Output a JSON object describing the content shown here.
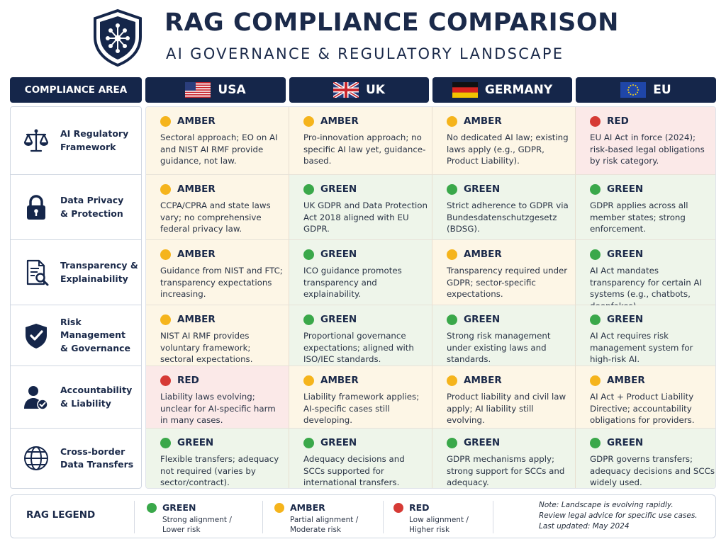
{
  "header": {
    "title": "RAG COMPLIANCE COMPARISON",
    "subtitle": "AI GOVERNANCE & REGULATORY LANDSCAPE"
  },
  "columns": {
    "area": "COMPLIANCE AREA",
    "usa": "USA",
    "uk": "UK",
    "germany": "GERMANY",
    "eu": "EU"
  },
  "colors": {
    "amber": "#f5b41c",
    "green": "#3aa84a",
    "red": "#d63a35",
    "navy": "#15264a"
  },
  "rows": [
    {
      "area": "AI Regulatory\nFramework",
      "icon": "scales-icon",
      "cells": [
        {
          "rating": "amber",
          "label": "AMBER",
          "text": "Sectoral approach; EO on AI and NIST AI RMF provide guidance, not law."
        },
        {
          "rating": "amber",
          "label": "AMBER",
          "text": "Pro-innovation approach; no specific AI law yet, guidance-based."
        },
        {
          "rating": "amber",
          "label": "AMBER",
          "text": "No dedicated AI law; existing laws apply (e.g., GDPR, Product Liability)."
        },
        {
          "rating": "red",
          "label": "RED",
          "text": "EU AI Act in force (2024); risk-based legal obligations by risk category."
        }
      ]
    },
    {
      "area": "Data Privacy\n& Protection",
      "icon": "padlock-icon",
      "cells": [
        {
          "rating": "amber",
          "label": "AMBER",
          "text": "CCPA/CPRA and state laws vary; no comprehensive federal privacy law."
        },
        {
          "rating": "green",
          "label": "GREEN",
          "text": "UK GDPR and Data Protection Act 2018 aligned with EU GDPR."
        },
        {
          "rating": "green",
          "label": "GREEN",
          "text": "Strict adherence to GDPR via Bundesdatenschutzgesetz (BDSG)."
        },
        {
          "rating": "green",
          "label": "GREEN",
          "text": "GDPR applies across all member states; strong enforcement."
        }
      ]
    },
    {
      "area": "Transparency &\nExplainability",
      "icon": "document-search-icon",
      "cells": [
        {
          "rating": "amber",
          "label": "AMBER",
          "text": "Guidance from NIST and FTC; transparency expectations increasing."
        },
        {
          "rating": "green",
          "label": "GREEN",
          "text": "ICO guidance promotes transparency and explainability."
        },
        {
          "rating": "amber",
          "label": "AMBER",
          "text": "Transparency required under GDPR; sector-specific expectations."
        },
        {
          "rating": "green",
          "label": "GREEN",
          "text": "AI Act mandates transparency for certain AI systems (e.g., chatbots, deepfakes)."
        }
      ]
    },
    {
      "area": "Risk Management\n& Governance",
      "icon": "shield-check-icon",
      "cells": [
        {
          "rating": "amber",
          "label": "AMBER",
          "text": "NIST AI RMF provides voluntary framework; sectoral expectations."
        },
        {
          "rating": "green",
          "label": "GREEN",
          "text": "Proportional governance expectations; aligned with ISO/IEC standards."
        },
        {
          "rating": "green",
          "label": "GREEN",
          "text": "Strong risk management under existing laws and standards."
        },
        {
          "rating": "green",
          "label": "GREEN",
          "text": "AI Act requires risk management system for high-risk AI."
        }
      ]
    },
    {
      "area": "Accountability\n& Liability",
      "icon": "user-check-icon",
      "cells": [
        {
          "rating": "red",
          "label": "RED",
          "text": "Liability laws evolving; unclear for AI-specific harm in many cases."
        },
        {
          "rating": "amber",
          "label": "AMBER",
          "text": "Liability framework applies; AI-specific cases still developing."
        },
        {
          "rating": "amber",
          "label": "AMBER",
          "text": "Product liability and civil law apply; AI liability still evolving."
        },
        {
          "rating": "amber",
          "label": "AMBER",
          "text": "AI Act + Product Liability Directive; accountability obligations for providers."
        }
      ]
    },
    {
      "area": "Cross-border\nData Transfers",
      "icon": "globe-icon",
      "cells": [
        {
          "rating": "green",
          "label": "GREEN",
          "text": "Flexible transfers; adequacy not required (varies by sector/contract)."
        },
        {
          "rating": "green",
          "label": "GREEN",
          "text": "Adequacy decisions and SCCs supported for international transfers."
        },
        {
          "rating": "green",
          "label": "GREEN",
          "text": "GDPR mechanisms apply; strong support for SCCs and adequacy."
        },
        {
          "rating": "green",
          "label": "GREEN",
          "text": "GDPR governs transfers; adequacy decisions and SCCs widely used."
        }
      ]
    }
  ],
  "legend": {
    "title": "RAG LEGEND",
    "items": [
      {
        "rating": "green",
        "label": "GREEN",
        "desc": "Strong alignment /\nLower risk"
      },
      {
        "rating": "amber",
        "label": "AMBER",
        "desc": "Partial alignment /\nModerate risk"
      },
      {
        "rating": "red",
        "label": "RED",
        "desc": "Low alignment /\nHigher risk"
      }
    ],
    "note": "Note: Landscape is evolving rapidly.\nReview legal advice for specific use cases.\nLast updated: May 2024"
  }
}
